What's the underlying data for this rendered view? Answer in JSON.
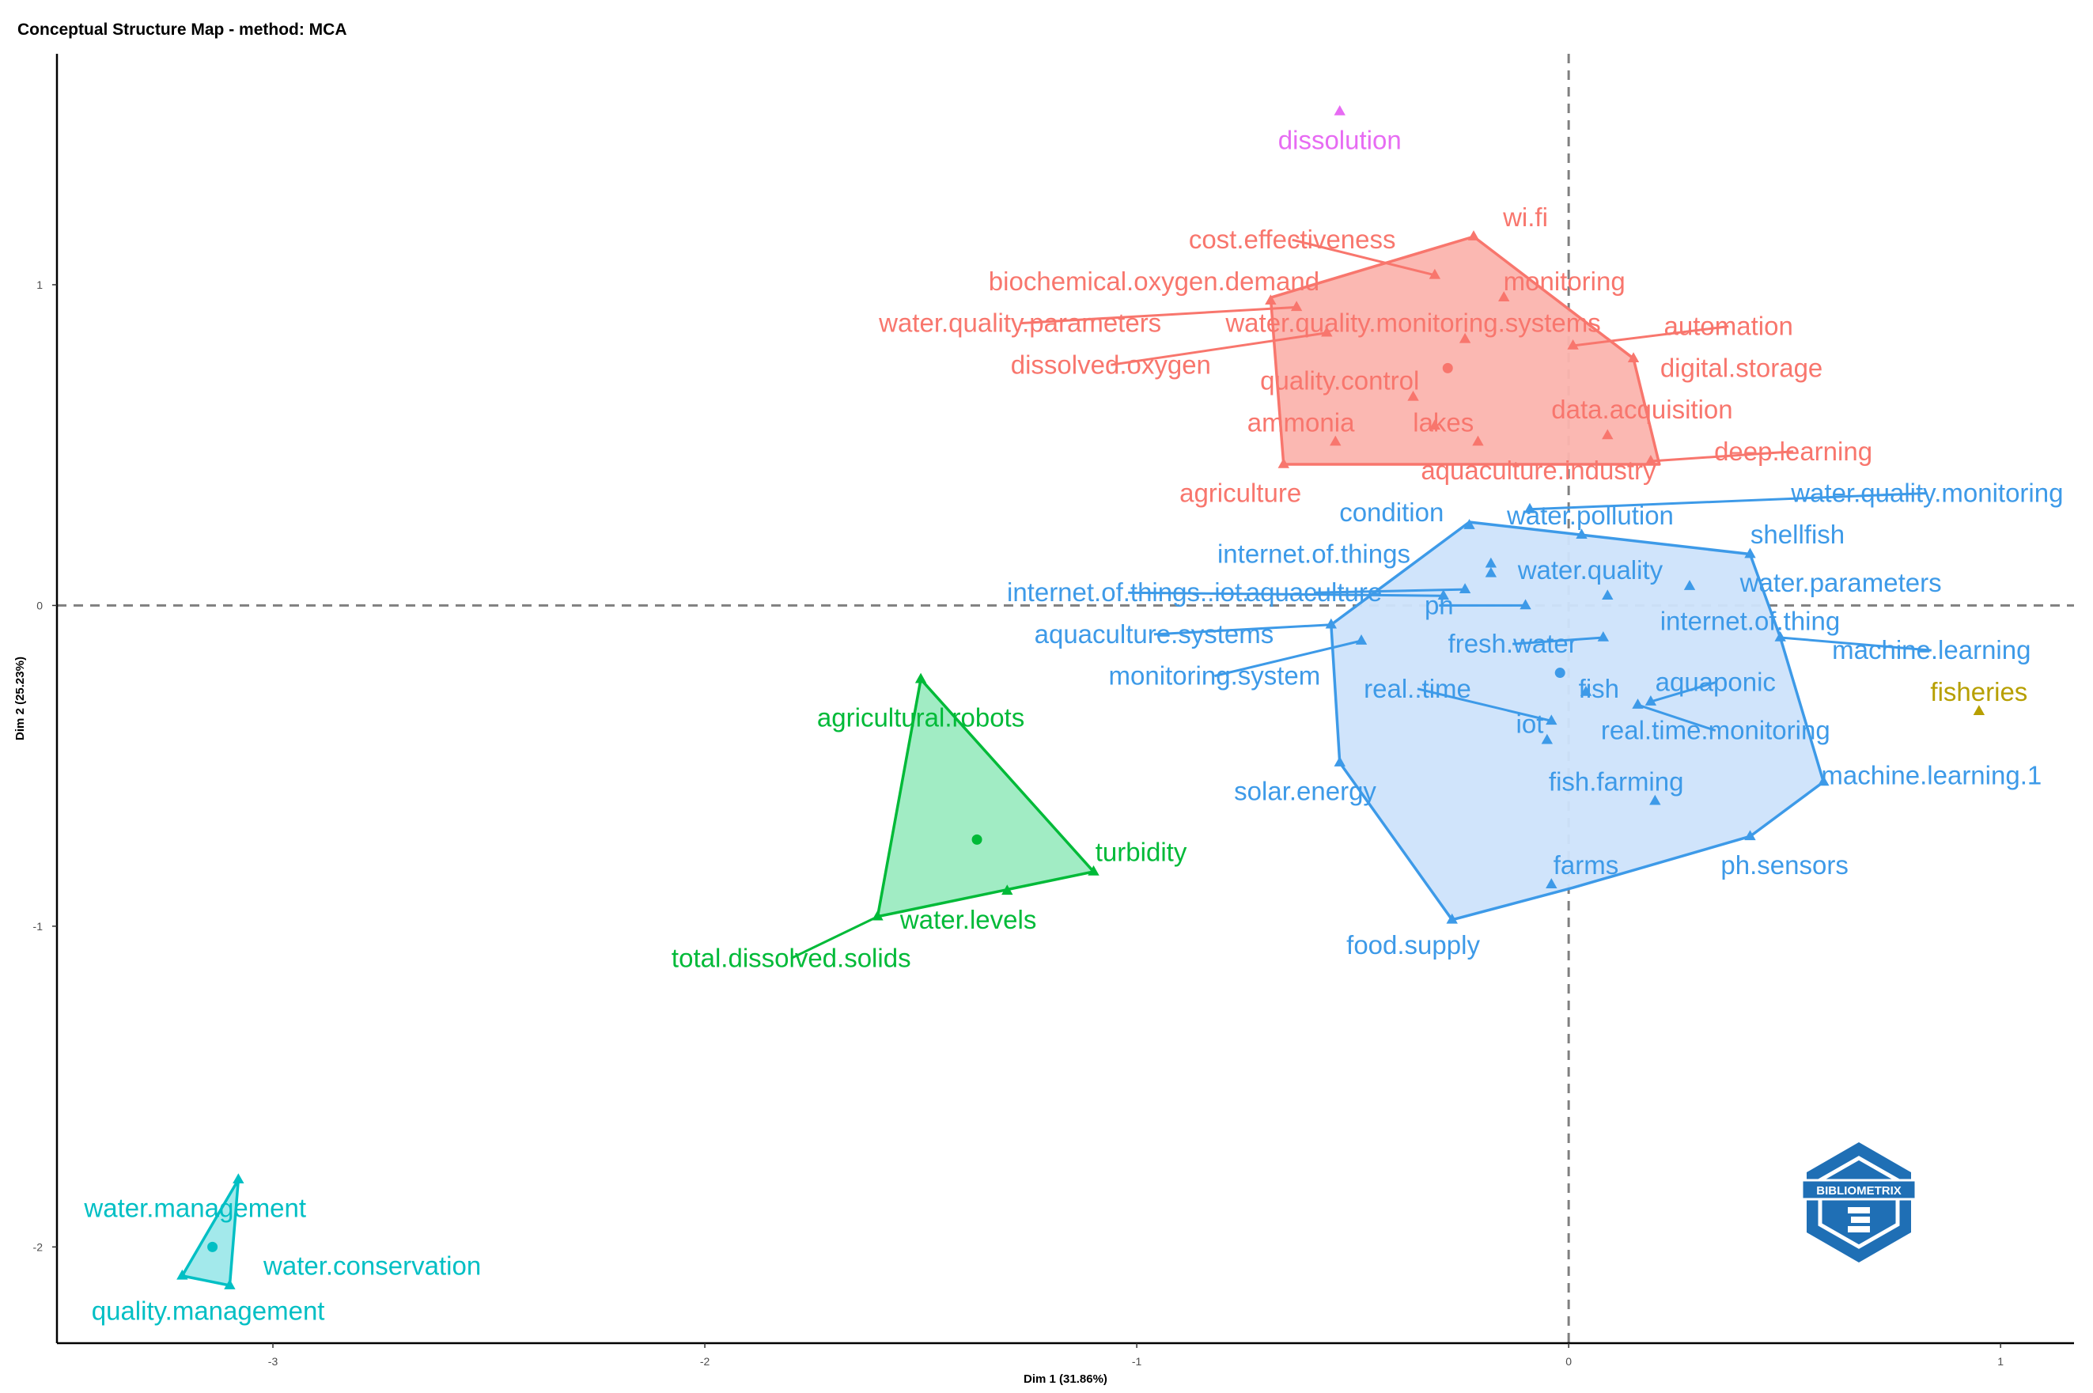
{
  "title": "Conceptual Structure Map - method: MCA",
  "logo": {
    "text": "BIBLIOMETRIX",
    "icon": "bibliometrix-logo-icon",
    "color": "#1f6fb5"
  },
  "chart_data": {
    "type": "scatter",
    "title": "Conceptual Structure Map - method: MCA",
    "xlabel": "Dim 1 (31.86%)",
    "ylabel": "Dim 2 (25.23%)",
    "xlim": [
      -3.5,
      1.17
    ],
    "ylim": [
      -2.3,
      1.72
    ],
    "xticks": [
      -3,
      -2,
      -1,
      0,
      1
    ],
    "yticks": [
      -2,
      -1,
      0,
      1
    ],
    "reference_lines": {
      "x": 0,
      "y": 0,
      "style": "dashed"
    },
    "grid": false,
    "clusters": [
      {
        "id": "red",
        "color": "#f8766d",
        "fill": "#fbb4ae",
        "centroid": [
          -0.28,
          0.74
        ],
        "hull": [
          [
            -0.22,
            1.15
          ],
          [
            0.15,
            0.77
          ],
          [
            0.21,
            0.44
          ],
          [
            -0.66,
            0.44
          ],
          [
            -0.69,
            0.96
          ]
        ],
        "points": [
          {
            "label": "wi.fi",
            "x": -0.22,
            "y": 1.15,
            "lx": -0.1,
            "ly": 1.21
          },
          {
            "label": "cost.effectiveness",
            "x": -0.31,
            "y": 1.03,
            "lx": -0.64,
            "ly": 1.14,
            "leader": true
          },
          {
            "label": "biochemical.oxygen.demand",
            "x": -0.69,
            "y": 0.95,
            "lx": -0.96,
            "ly": 1.01
          },
          {
            "label": "monitoring",
            "x": -0.15,
            "y": 0.96,
            "lx": -0.01,
            "ly": 1.01
          },
          {
            "label": "water.quality.parameters",
            "x": -0.63,
            "y": 0.93,
            "lx": -1.27,
            "ly": 0.88,
            "leader": true
          },
          {
            "label": "water.quality.monitoring.systems",
            "x": -0.24,
            "y": 0.83,
            "lx": -0.36,
            "ly": 0.88
          },
          {
            "label": "automation",
            "x": 0.01,
            "y": 0.81,
            "lx": 0.37,
            "ly": 0.87,
            "leader": true
          },
          {
            "label": "dissolved.oxygen",
            "x": -0.56,
            "y": 0.85,
            "lx": -1.06,
            "ly": 0.75,
            "leader": true
          },
          {
            "label": "digital.storage",
            "x": 0.15,
            "y": 0.77,
            "lx": 0.4,
            "ly": 0.74
          },
          {
            "label": "quality.control",
            "x": -0.36,
            "y": 0.65,
            "lx": -0.53,
            "ly": 0.7
          },
          {
            "label": "ammonia",
            "x": -0.54,
            "y": 0.51,
            "lx": -0.62,
            "ly": 0.57
          },
          {
            "label": "lakes",
            "x": -0.31,
            "y": 0.56,
            "lx": -0.29,
            "ly": 0.57
          },
          {
            "label": "data.acquisition",
            "x": 0.09,
            "y": 0.53,
            "lx": 0.17,
            "ly": 0.61
          },
          {
            "label": "deep.learning",
            "x": 0.19,
            "y": 0.45,
            "lx": 0.52,
            "ly": 0.48,
            "leader": true
          },
          {
            "label": "aquaculture.industry",
            "x": -0.21,
            "y": 0.51,
            "lx": -0.07,
            "ly": 0.42
          },
          {
            "label": "agriculture",
            "x": -0.66,
            "y": 0.44,
            "lx": -0.76,
            "ly": 0.35
          }
        ]
      },
      {
        "id": "blue",
        "color": "#3d9ae8",
        "fill": "#cde3fb",
        "centroid": [
          -0.02,
          -0.21
        ],
        "hull": [
          [
            -0.23,
            0.26
          ],
          [
            0.42,
            0.16
          ],
          [
            0.49,
            -0.1
          ],
          [
            0.59,
            -0.55
          ],
          [
            0.42,
            -0.72
          ],
          [
            0.01,
            -0.88
          ],
          [
            -0.27,
            -0.98
          ],
          [
            -0.53,
            -0.49
          ],
          [
            -0.55,
            -0.06
          ]
        ],
        "points": [
          {
            "label": "water.quality.monitoring",
            "x": -0.09,
            "y": 0.3,
            "lx": 0.83,
            "ly": 0.35,
            "leader": true
          },
          {
            "label": "condition",
            "x": -0.23,
            "y": 0.25,
            "lx": -0.41,
            "ly": 0.29
          },
          {
            "label": "water.pollution",
            "x": 0.03,
            "y": 0.22,
            "lx": 0.05,
            "ly": 0.28
          },
          {
            "label": "shellfish",
            "x": 0.42,
            "y": 0.16,
            "lx": 0.53,
            "ly": 0.22
          },
          {
            "label": "internet.of.things",
            "x": -0.18,
            "y": 0.13,
            "lx": -0.59,
            "ly": 0.16
          },
          {
            "label": "water.quality",
            "x": -0.18,
            "y": 0.1,
            "lx": 0.05,
            "ly": 0.11
          },
          {
            "label": "water.parameters",
            "x": 0.28,
            "y": 0.06,
            "lx": 0.63,
            "ly": 0.07
          },
          {
            "label": "aquaculture",
            "x": -0.24,
            "y": 0.05,
            "lx": -0.59,
            "ly": 0.04,
            "leader": true
          },
          {
            "label": "internet.of.things..iot.",
            "x": -0.29,
            "y": 0.03,
            "lx": -1.02,
            "ly": 0.04,
            "leader": true
          },
          {
            "label": "ph",
            "x": -0.1,
            "y": 0.0,
            "lx": -0.3,
            "ly": 0.0,
            "leader": true
          },
          {
            "label": "internet.of.thing",
            "x": 0.09,
            "y": 0.03,
            "lx": 0.42,
            "ly": -0.05
          },
          {
            "label": "aquaculture.systems",
            "x": -0.55,
            "y": -0.06,
            "lx": -0.96,
            "ly": -0.09,
            "leader": true
          },
          {
            "label": "fresh.water",
            "x": 0.08,
            "y": -0.1,
            "lx": -0.13,
            "ly": -0.12,
            "leader": true
          },
          {
            "label": "machine.learning",
            "x": 0.49,
            "y": -0.1,
            "lx": 0.84,
            "ly": -0.14,
            "leader": true
          },
          {
            "label": "monitoring.system",
            "x": -0.48,
            "y": -0.11,
            "lx": -0.82,
            "ly": -0.22,
            "leader": true
          },
          {
            "label": "real..time",
            "x": -0.04,
            "y": -0.36,
            "lx": -0.35,
            "ly": -0.26,
            "leader": true
          },
          {
            "label": "fish",
            "x": 0.04,
            "y": -0.27,
            "lx": 0.07,
            "ly": -0.26
          },
          {
            "label": "aquaponic",
            "x": 0.19,
            "y": -0.3,
            "lx": 0.34,
            "ly": -0.24,
            "leader": true
          },
          {
            "label": "iot",
            "x": -0.05,
            "y": -0.42,
            "lx": -0.09,
            "ly": -0.37
          },
          {
            "label": "real.time.monitoring",
            "x": 0.16,
            "y": -0.31,
            "lx": 0.34,
            "ly": -0.39,
            "leader": true
          },
          {
            "label": "fish.farming",
            "x": 0.2,
            "y": -0.61,
            "lx": 0.11,
            "ly": -0.55
          },
          {
            "label": "machine.learning.1",
            "x": 0.59,
            "y": -0.55,
            "lx": 0.84,
            "ly": -0.53
          },
          {
            "label": "solar.energy",
            "x": -0.53,
            "y": -0.49,
            "lx": -0.61,
            "ly": -0.58
          },
          {
            "label": "farms",
            "x": -0.04,
            "y": -0.87,
            "lx": 0.04,
            "ly": -0.81
          },
          {
            "label": "ph.sensors",
            "x": 0.42,
            "y": -0.72,
            "lx": 0.5,
            "ly": -0.81
          },
          {
            "label": "food.supply",
            "x": -0.27,
            "y": -0.98,
            "lx": -0.36,
            "ly": -1.06
          }
        ]
      },
      {
        "id": "green",
        "color": "#00ba38",
        "fill": "#9cebc1",
        "centroid": [
          -1.37,
          -0.73
        ],
        "hull": [
          [
            -1.5,
            -0.23
          ],
          [
            -1.1,
            -0.83
          ],
          [
            -1.6,
            -0.97
          ]
        ],
        "points": [
          {
            "label": "agricultural.robots",
            "x": -1.5,
            "y": -0.23,
            "lx": -1.5,
            "ly": -0.35
          },
          {
            "label": "turbidity",
            "x": -1.1,
            "y": -0.83,
            "lx": -0.99,
            "ly": -0.77
          },
          {
            "label": "water.levels",
            "x": -1.3,
            "y": -0.89,
            "lx": -1.39,
            "ly": -0.98
          },
          {
            "label": "total.dissolved.solids",
            "x": -1.6,
            "y": -0.97,
            "lx": -1.8,
            "ly": -1.1,
            "leader": true
          }
        ]
      },
      {
        "id": "teal",
        "color": "#00bfc4",
        "fill": "#9ee8ea",
        "centroid": [
          -3.14,
          -2.0
        ],
        "hull": [
          [
            -3.08,
            -1.79
          ],
          [
            -3.21,
            -2.09
          ],
          [
            -3.1,
            -2.12
          ]
        ],
        "points": [
          {
            "label": "water.management",
            "x": -3.08,
            "y": -1.79,
            "lx": -3.18,
            "ly": -1.88
          },
          {
            "label": "water.conservation",
            "x": -3.1,
            "y": -2.12,
            "lx": -2.77,
            "ly": -2.06
          },
          {
            "label": "quality.management",
            "x": -3.21,
            "y": -2.09,
            "lx": -3.15,
            "ly": -2.2
          }
        ]
      },
      {
        "id": "magenta",
        "color": "#e76bf3",
        "points": [
          {
            "label": "dissolution",
            "x": -0.53,
            "y": 1.54,
            "lx": -0.53,
            "ly": 1.45
          }
        ]
      },
      {
        "id": "olive",
        "color": "#b79f00",
        "points": [
          {
            "label": "fisheries",
            "x": 0.95,
            "y": -0.33,
            "lx": 0.95,
            "ly": -0.27
          }
        ]
      }
    ]
  }
}
